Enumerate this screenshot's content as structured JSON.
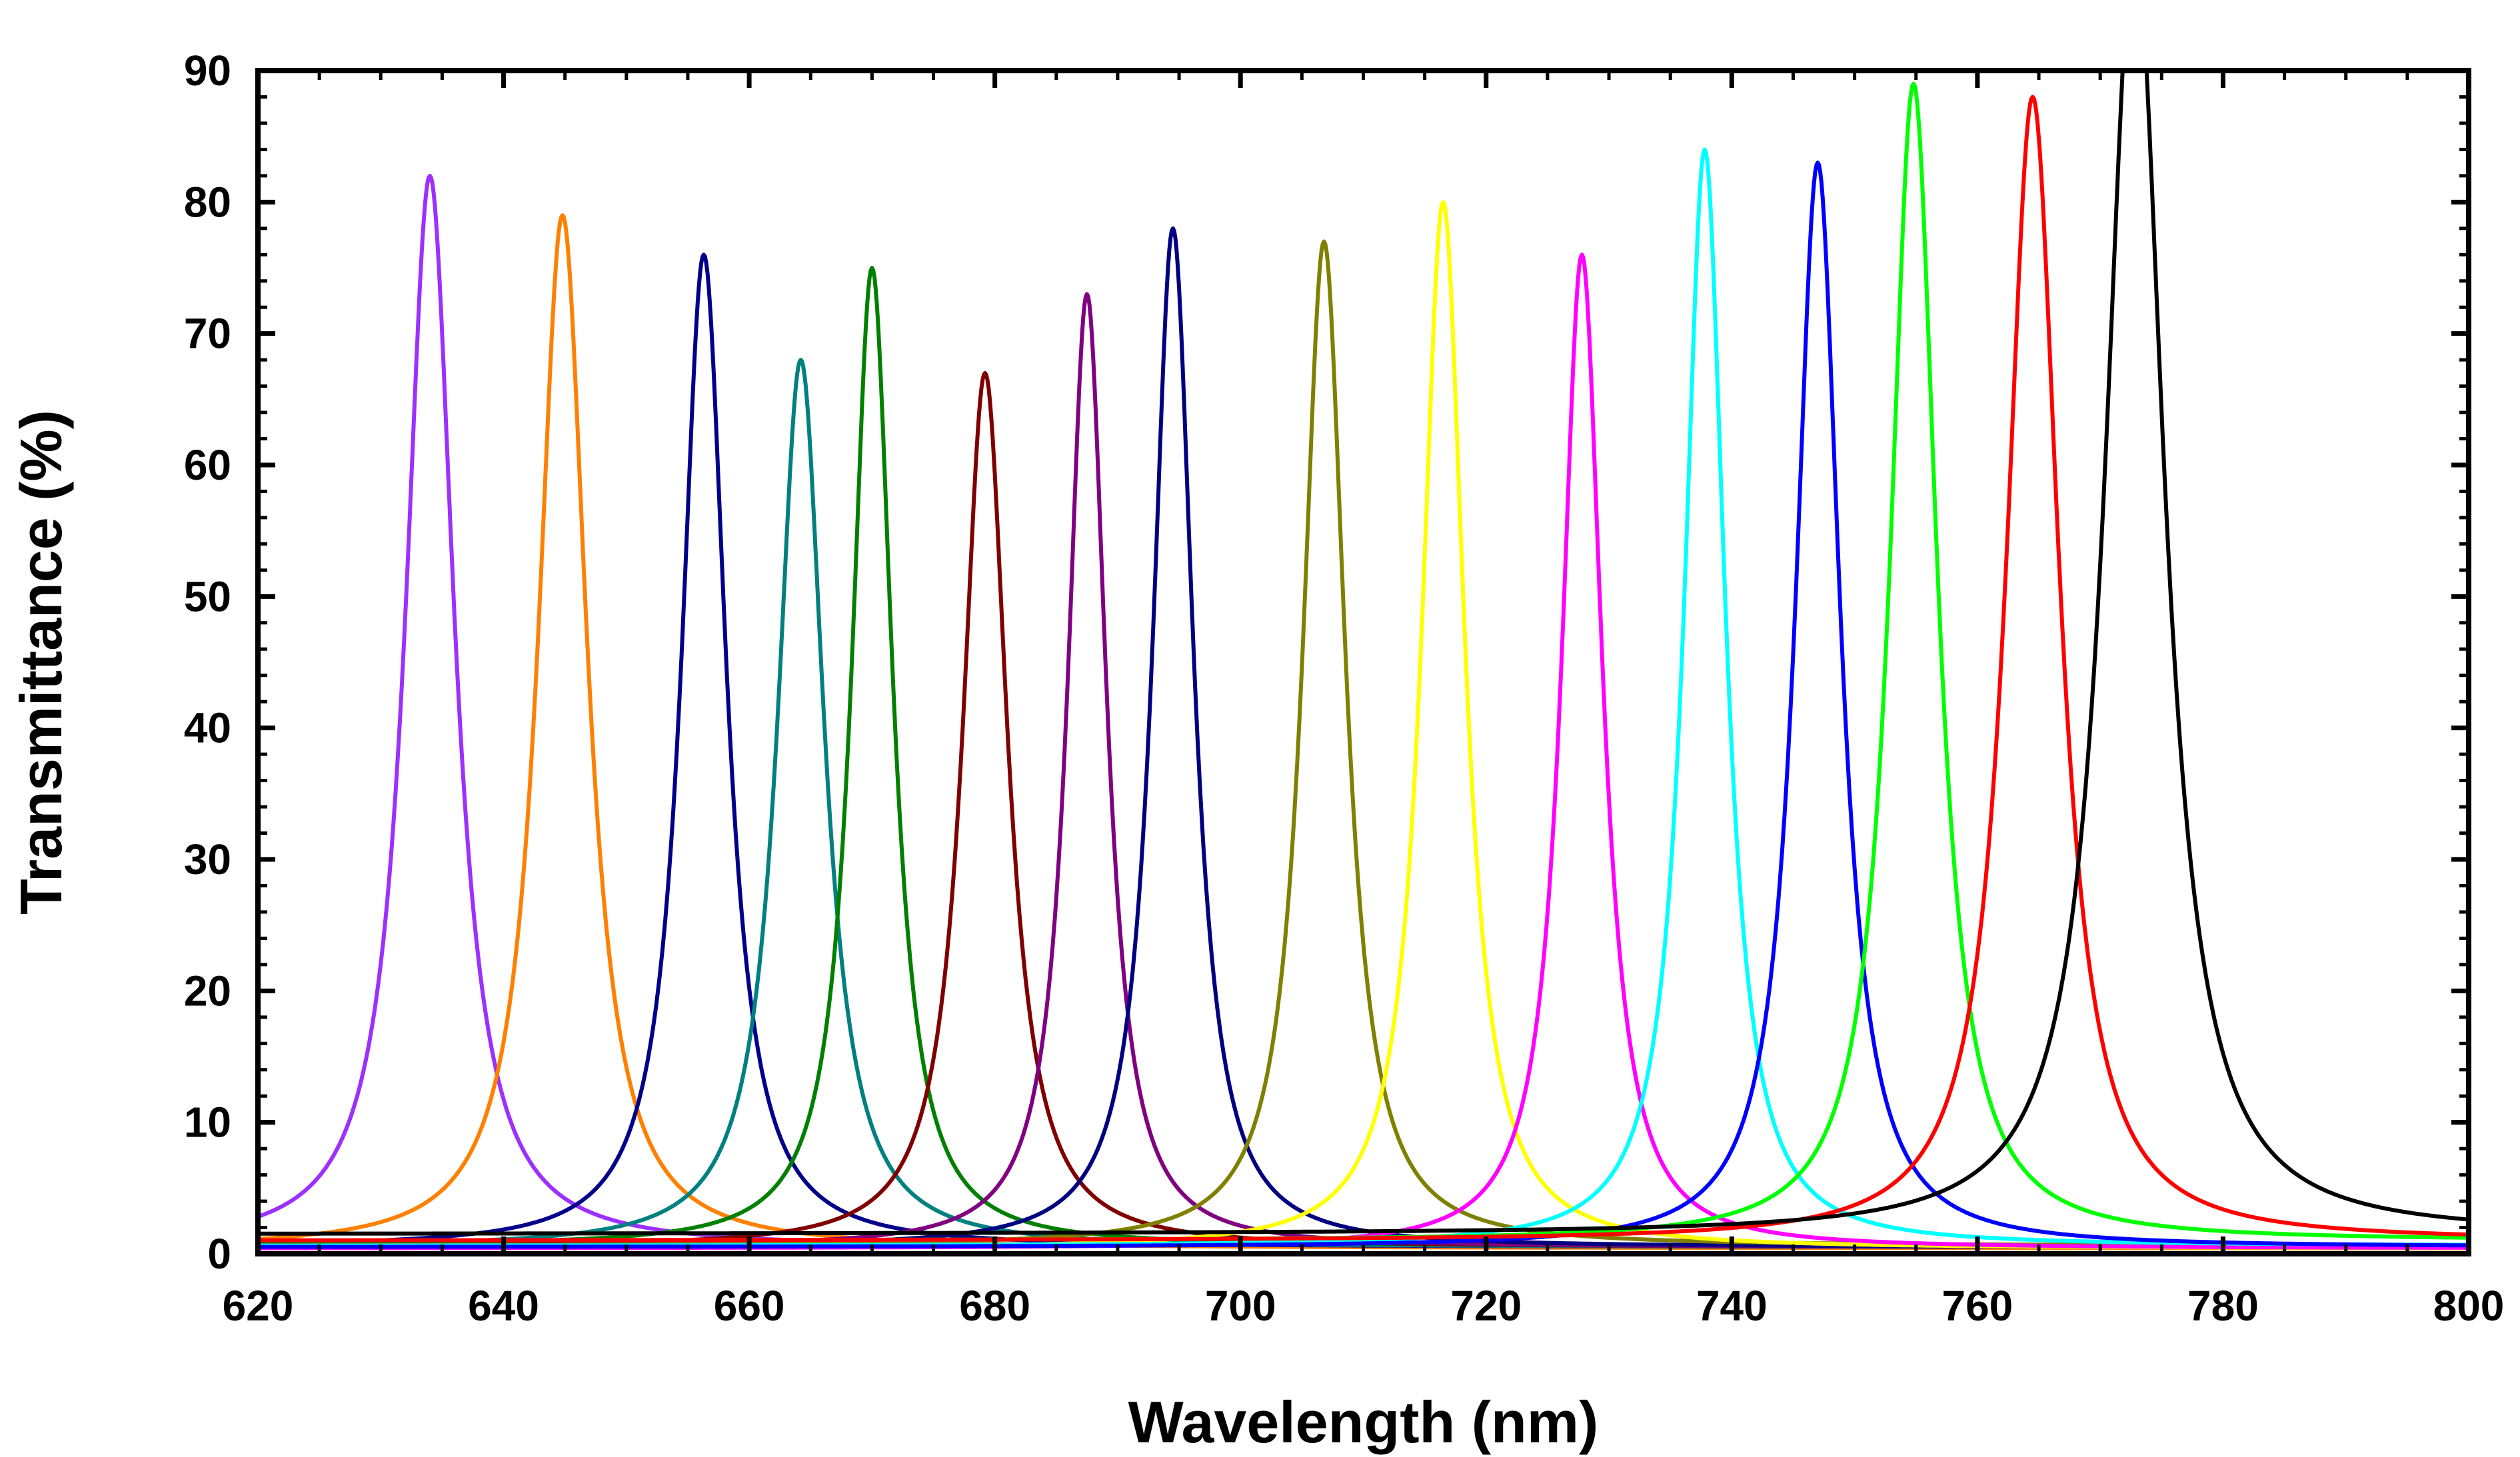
{
  "chart_data": {
    "type": "line",
    "title": "",
    "xlabel": "Wavelength (nm)",
    "ylabel": "Transmittance (%)",
    "xlim": [
      620,
      800
    ],
    "ylim": [
      0,
      90
    ],
    "x_ticks": [
      620,
      640,
      660,
      680,
      700,
      720,
      740,
      760,
      780,
      800
    ],
    "x_tick_labels": [
      "620",
      "640",
      "660",
      "680",
      "700",
      "720",
      "740",
      "760",
      "780",
      "800"
    ],
    "y_ticks": [
      0,
      10,
      20,
      30,
      40,
      50,
      60,
      70,
      80,
      90
    ],
    "y_tick_labels": [
      "0",
      "10",
      "20",
      "30",
      "40",
      "50",
      "60",
      "70",
      "80",
      "90"
    ],
    "grid": false,
    "legend": "none",
    "series": [
      {
        "color": "#9B30FF",
        "peak_x": 634.0,
        "peak_y": 82,
        "hwhm": 2.4,
        "baseline": 0.5
      },
      {
        "color": "#FF8000",
        "peak_x": 644.8,
        "peak_y": 79,
        "hwhm": 2.4,
        "baseline": 0.4
      },
      {
        "color": "#00008B",
        "peak_x": 656.3,
        "peak_y": 76,
        "hwhm": 2.2,
        "baseline": 0.5
      },
      {
        "color": "#008080",
        "peak_x": 664.2,
        "peak_y": 68,
        "hwhm": 2.3,
        "baseline": 0.5
      },
      {
        "color": "#008000",
        "peak_x": 670.0,
        "peak_y": 75,
        "hwhm": 2.0,
        "baseline": 0.6
      },
      {
        "color": "#800000",
        "peak_x": 679.2,
        "peak_y": 67,
        "hwhm": 2.2,
        "baseline": 0.5
      },
      {
        "color": "#800080",
        "peak_x": 687.5,
        "peak_y": 73,
        "hwhm": 1.9,
        "baseline": 0.5
      },
      {
        "color": "#000080",
        "peak_x": 694.5,
        "peak_y": 78,
        "hwhm": 2.0,
        "baseline": 0.5
      },
      {
        "color": "#808000",
        "peak_x": 706.8,
        "peak_y": 77,
        "hwhm": 2.1,
        "baseline": 0.6
      },
      {
        "color": "#FFFF00",
        "peak_x": 716.5,
        "peak_y": 80,
        "hwhm": 2.1,
        "baseline": 0.4
      },
      {
        "color": "#FF00FF",
        "peak_x": 727.8,
        "peak_y": 76,
        "hwhm": 2.0,
        "baseline": 0.4
      },
      {
        "color": "#00FFFF",
        "peak_x": 737.8,
        "peak_y": 84,
        "hwhm": 2.0,
        "baseline": 0.6
      },
      {
        "color": "#0000FF",
        "peak_x": 747.0,
        "peak_y": 83,
        "hwhm": 2.2,
        "baseline": 0.5
      },
      {
        "color": "#00FF00",
        "peak_x": 754.8,
        "peak_y": 89,
        "hwhm": 2.3,
        "baseline": 1.0
      },
      {
        "color": "#FF0000",
        "peak_x": 764.5,
        "peak_y": 88,
        "hwhm": 2.6,
        "baseline": 1.0
      },
      {
        "color": "#000000",
        "peak_x": 772.8,
        "peak_y": 100,
        "hwhm": 2.9,
        "baseline": 1.5
      }
    ]
  }
}
